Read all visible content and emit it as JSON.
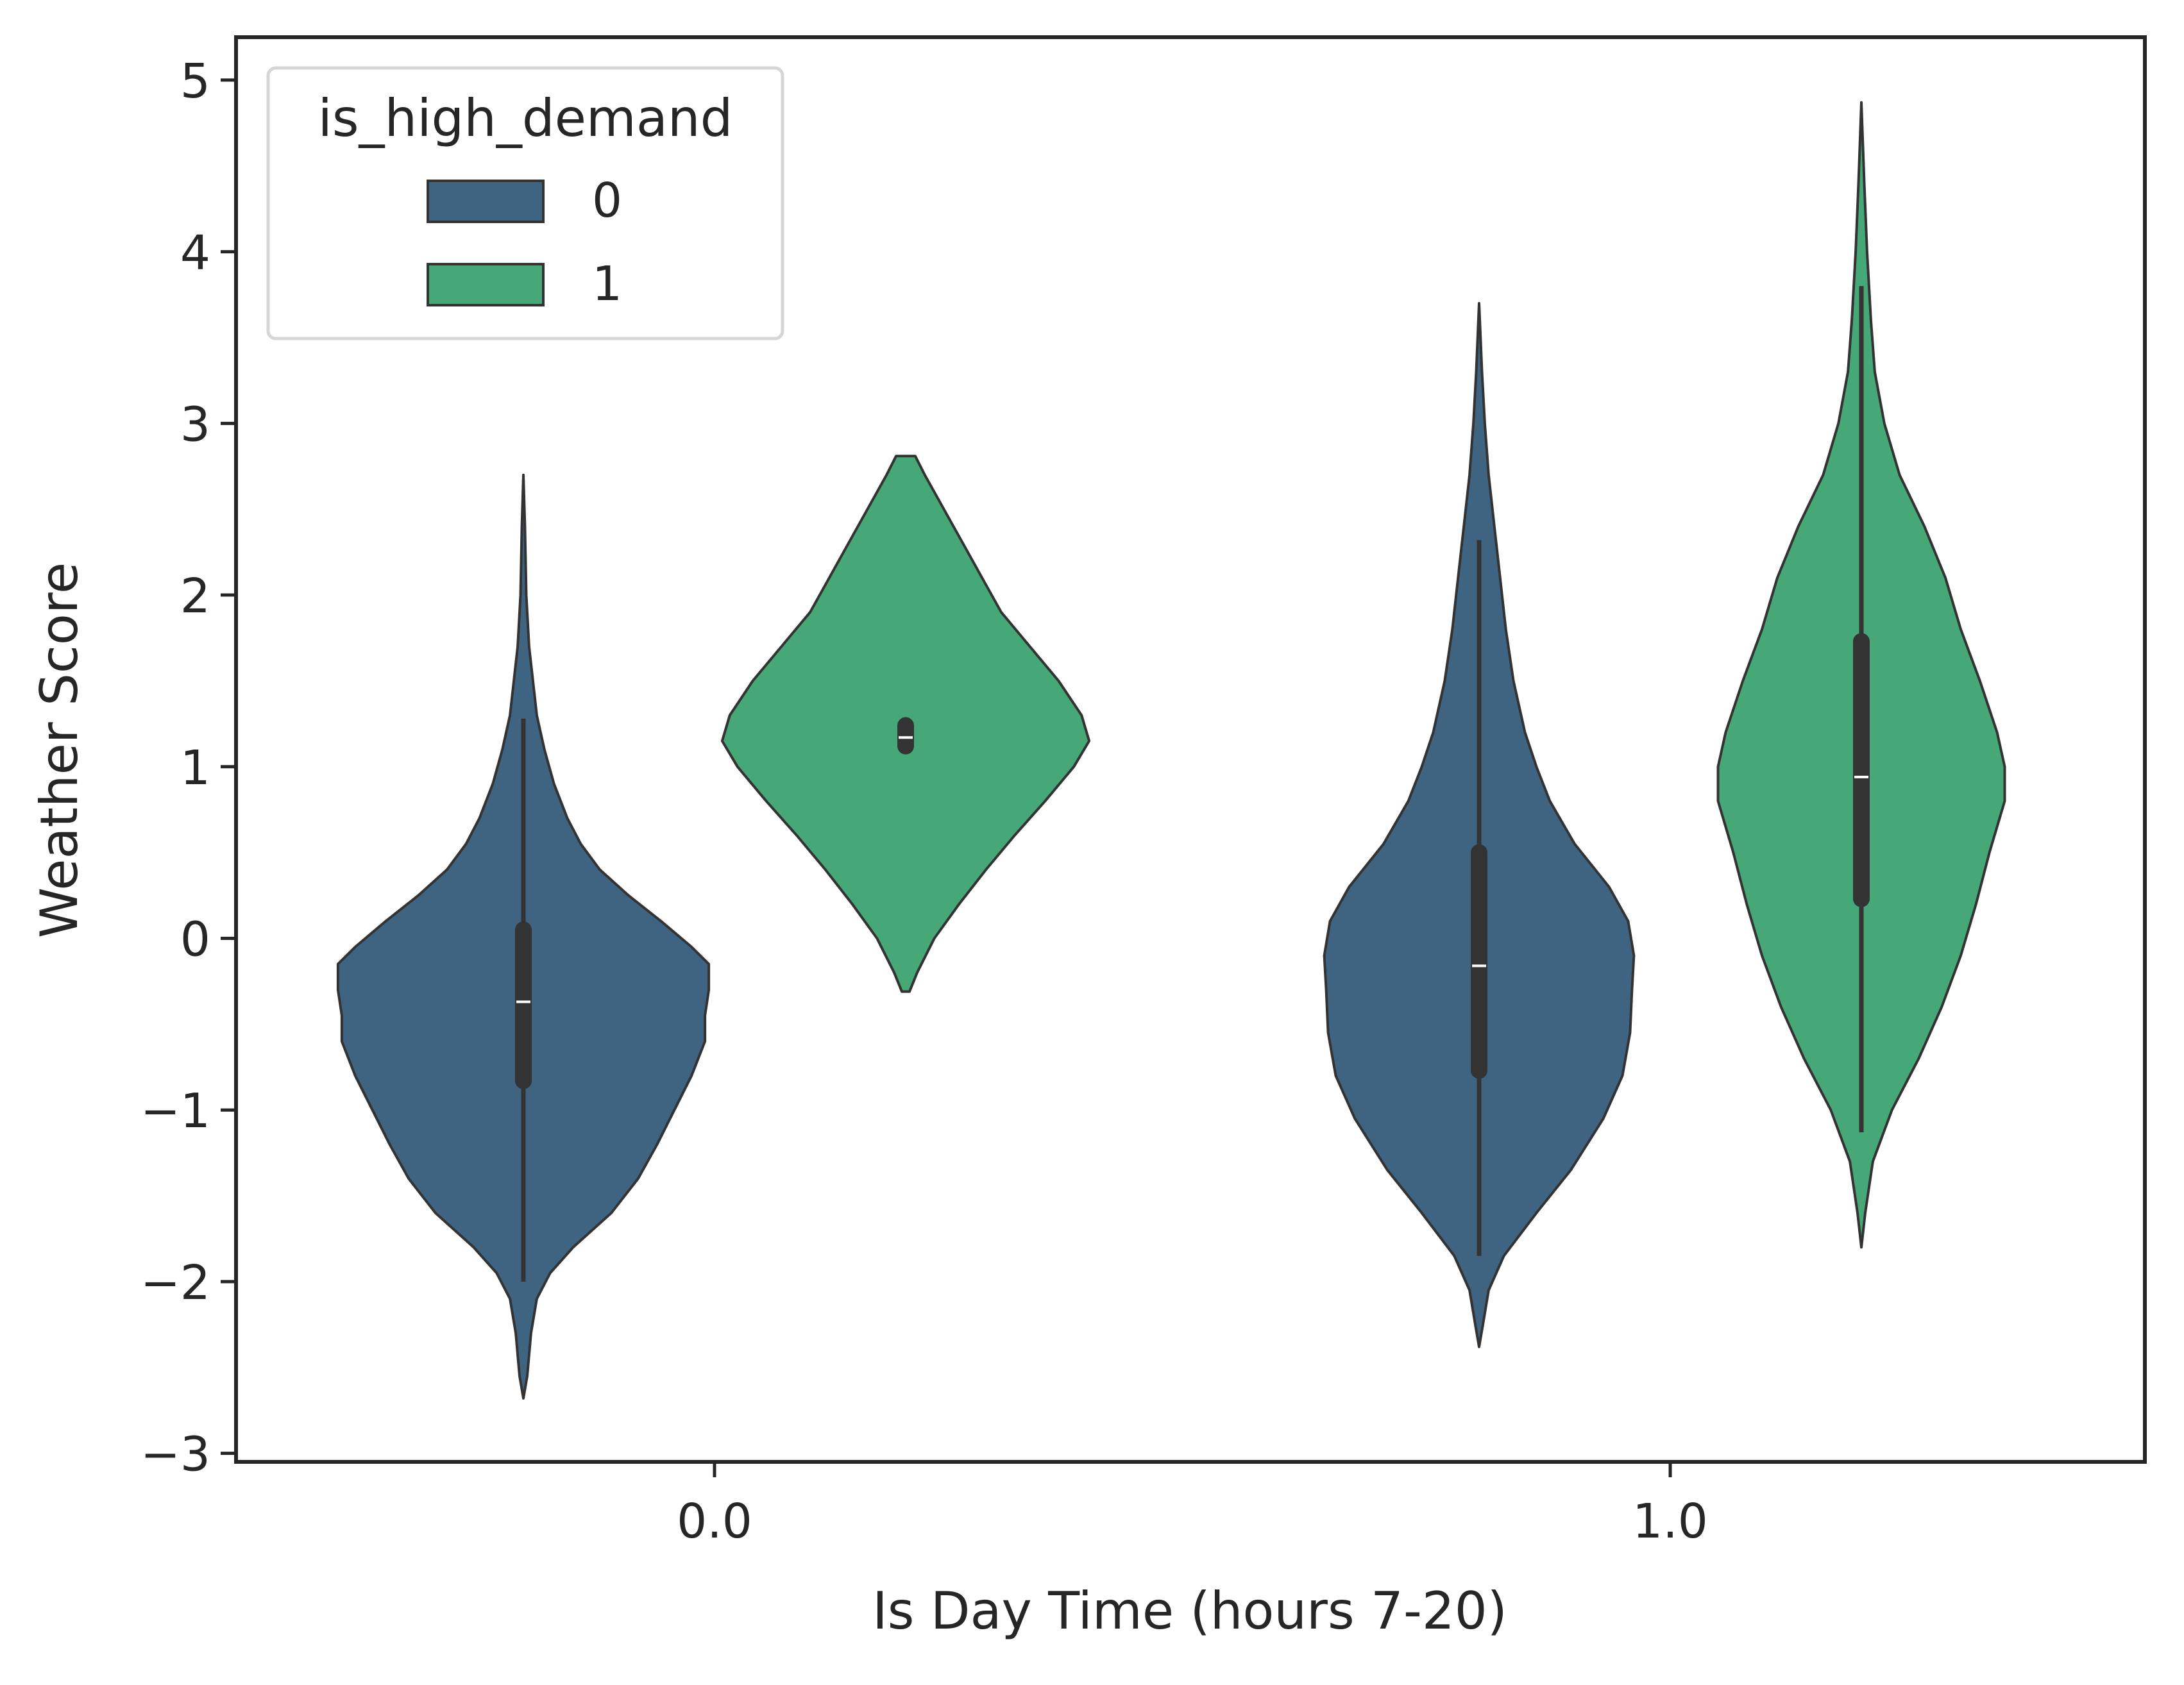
{
  "chart_data": {
    "type": "violin",
    "title": "",
    "xlabel": "Is Day Time (hours 7-20)",
    "ylabel": "Weather Score",
    "categories": [
      "0.0",
      "1.0"
    ],
    "ylim": [
      -3.05,
      5.25
    ],
    "yticks": [
      -3,
      -2,
      -1,
      0,
      1,
      2,
      3,
      4,
      5
    ],
    "ytick_labels": [
      "−3",
      "−2",
      "−1",
      "0",
      "1",
      "2",
      "3",
      "4",
      "5"
    ],
    "grid": false,
    "legend": {
      "title": "is_high_demand",
      "placement": "upper-left",
      "entries": [
        {
          "label": "0",
          "color": "#3e6482"
        },
        {
          "label": "1",
          "color": "#47a877"
        }
      ]
    },
    "series": [
      {
        "name": "0",
        "color": "#3e6482",
        "violins": [
          {
            "category": "0.0",
            "min": -2.68,
            "max": 2.7,
            "whisker_low": -2.0,
            "whisker_high": 1.28,
            "q1": -0.83,
            "median": -0.37,
            "q3": 0.05,
            "profile": [
              [
                -2.68,
                0.0
              ],
              [
                -2.55,
                0.02
              ],
              [
                -2.3,
                0.04
              ],
              [
                -2.1,
                0.07
              ],
              [
                -1.95,
                0.14
              ],
              [
                -1.8,
                0.26
              ],
              [
                -1.6,
                0.46
              ],
              [
                -1.4,
                0.6
              ],
              [
                -1.2,
                0.7
              ],
              [
                -1.0,
                0.79
              ],
              [
                -0.8,
                0.88
              ],
              [
                -0.6,
                0.95
              ],
              [
                -0.45,
                0.95
              ],
              [
                -0.3,
                0.97
              ],
              [
                -0.15,
                0.97
              ],
              [
                -0.05,
                0.88
              ],
              [
                0.1,
                0.72
              ],
              [
                0.25,
                0.55
              ],
              [
                0.4,
                0.4
              ],
              [
                0.55,
                0.3
              ],
              [
                0.7,
                0.23
              ],
              [
                0.9,
                0.16
              ],
              [
                1.1,
                0.11
              ],
              [
                1.3,
                0.07
              ],
              [
                1.5,
                0.05
              ],
              [
                1.7,
                0.03
              ],
              [
                2.0,
                0.015
              ],
              [
                2.4,
                0.008
              ],
              [
                2.7,
                0.0
              ]
            ]
          },
          {
            "category": "1.0",
            "min": -2.38,
            "max": 3.7,
            "whisker_low": -1.85,
            "whisker_high": 2.32,
            "q1": -0.77,
            "median": -0.16,
            "q3": 0.5,
            "profile": [
              [
                -2.38,
                0.0
              ],
              [
                -2.25,
                0.02
              ],
              [
                -2.05,
                0.05
              ],
              [
                -1.85,
                0.13
              ],
              [
                -1.6,
                0.3
              ],
              [
                -1.35,
                0.48
              ],
              [
                -1.05,
                0.65
              ],
              [
                -0.8,
                0.75
              ],
              [
                -0.55,
                0.79
              ],
              [
                -0.3,
                0.8
              ],
              [
                -0.1,
                0.81
              ],
              [
                0.1,
                0.78
              ],
              [
                0.3,
                0.68
              ],
              [
                0.55,
                0.5
              ],
              [
                0.8,
                0.37
              ],
              [
                1.0,
                0.3
              ],
              [
                1.2,
                0.24
              ],
              [
                1.5,
                0.18
              ],
              [
                1.8,
                0.14
              ],
              [
                2.1,
                0.11
              ],
              [
                2.4,
                0.08
              ],
              [
                2.7,
                0.05
              ],
              [
                3.0,
                0.03
              ],
              [
                3.3,
                0.015
              ],
              [
                3.7,
                0.0
              ]
            ]
          }
        ]
      },
      {
        "name": "1",
        "color": "#47a877",
        "violins": [
          {
            "category": "0.0",
            "min": -0.31,
            "max": 2.81,
            "whisker_low": 1.1,
            "whisker_high": 1.25,
            "q1": 1.12,
            "median": 1.17,
            "q3": 1.24,
            "profile": [
              [
                -0.31,
                0.02
              ],
              [
                -0.2,
                0.06
              ],
              [
                0.0,
                0.15
              ],
              [
                0.2,
                0.28
              ],
              [
                0.4,
                0.42
              ],
              [
                0.6,
                0.57
              ],
              [
                0.8,
                0.73
              ],
              [
                1.0,
                0.88
              ],
              [
                1.15,
                0.96
              ],
              [
                1.3,
                0.92
              ],
              [
                1.5,
                0.8
              ],
              [
                1.7,
                0.65
              ],
              [
                1.9,
                0.5
              ],
              [
                2.1,
                0.4
              ],
              [
                2.3,
                0.3
              ],
              [
                2.5,
                0.2
              ],
              [
                2.7,
                0.1
              ],
              [
                2.81,
                0.05
              ]
            ]
          },
          {
            "category": "1.0",
            "min": -1.8,
            "max": 4.87,
            "whisker_low": -1.13,
            "whisker_high": 3.8,
            "q1": 0.23,
            "median": 0.94,
            "q3": 1.73,
            "profile": [
              [
                -1.8,
                0.0
              ],
              [
                -1.6,
                0.02
              ],
              [
                -1.3,
                0.06
              ],
              [
                -1.0,
                0.16
              ],
              [
                -0.7,
                0.3
              ],
              [
                -0.4,
                0.42
              ],
              [
                -0.1,
                0.52
              ],
              [
                0.2,
                0.6
              ],
              [
                0.5,
                0.67
              ],
              [
                0.8,
                0.75
              ],
              [
                1.0,
                0.75
              ],
              [
                1.2,
                0.71
              ],
              [
                1.5,
                0.62
              ],
              [
                1.8,
                0.52
              ],
              [
                2.1,
                0.44
              ],
              [
                2.4,
                0.33
              ],
              [
                2.7,
                0.2
              ],
              [
                3.0,
                0.12
              ],
              [
                3.3,
                0.07
              ],
              [
                3.6,
                0.05
              ],
              [
                4.0,
                0.03
              ],
              [
                4.4,
                0.015
              ],
              [
                4.87,
                0.0
              ]
            ]
          }
        ]
      }
    ]
  }
}
